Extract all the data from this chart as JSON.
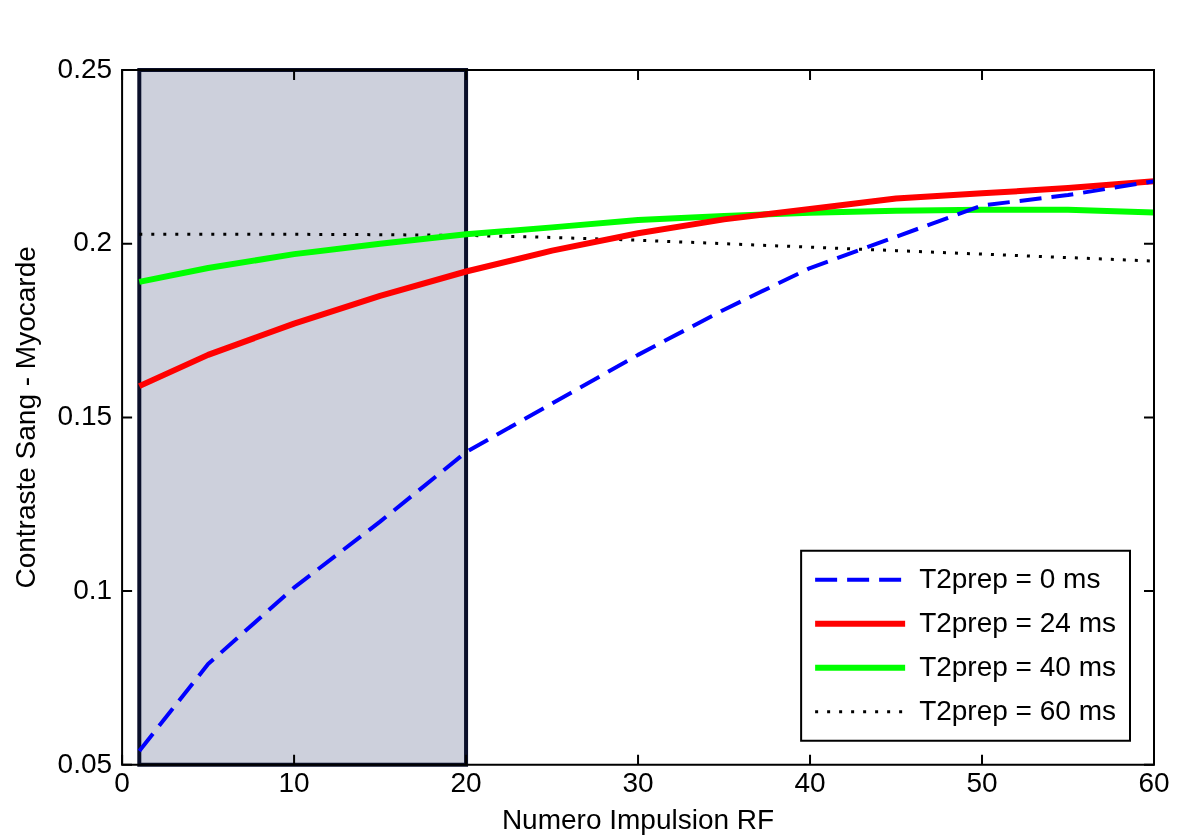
{
  "chart_data": {
    "type": "line",
    "xlabel": "Numero Impulsion RF",
    "ylabel": "Contraste Sang - Myocarde",
    "x": [
      1,
      5,
      10,
      15,
      20,
      25,
      30,
      35,
      40,
      45,
      50,
      55,
      60
    ],
    "series": [
      {
        "name": "T2prep = 0 ms",
        "color": "#0000ff",
        "line_style": "dashed",
        "values": [
          0.054,
          0.079,
          0.101,
          0.12,
          0.14,
          0.154,
          0.168,
          0.181,
          0.193,
          0.202,
          0.211,
          0.214,
          0.218
        ]
      },
      {
        "name": "T2prep = 24 ms",
        "color": "#ff0000",
        "line_style": "solid",
        "values": [
          0.159,
          0.168,
          0.177,
          0.185,
          0.192,
          0.198,
          0.203,
          0.207,
          0.21,
          0.213,
          0.2145,
          0.216,
          0.218
        ]
      },
      {
        "name": "T2prep = 40 ms",
        "color": "#00ff00",
        "line_style": "solid",
        "values": [
          0.189,
          0.193,
          0.197,
          0.2,
          0.2027,
          0.2047,
          0.2068,
          0.208,
          0.2089,
          0.2095,
          0.2098,
          0.2098,
          0.209
        ]
      },
      {
        "name": "T2prep = 60 ms",
        "color": "#000000",
        "line_style": "dotted",
        "values": [
          0.2027,
          0.2027,
          0.2027,
          0.2026,
          0.2024,
          0.2018,
          0.201,
          0.2,
          0.199,
          0.198,
          0.197,
          0.196,
          0.195
        ]
      }
    ],
    "xlim": [
      0,
      60
    ],
    "xticks": [
      0,
      10,
      20,
      30,
      40,
      50,
      60
    ],
    "ylim": [
      0.05,
      0.25
    ],
    "yticks": [
      0.05,
      0.1,
      0.15,
      0.2,
      0.25
    ],
    "bands": [
      {
        "axis": "x",
        "from": 1,
        "to": 20,
        "color": "#cdd0dc"
      }
    ],
    "legend": "bottom right",
    "grid": false
  }
}
